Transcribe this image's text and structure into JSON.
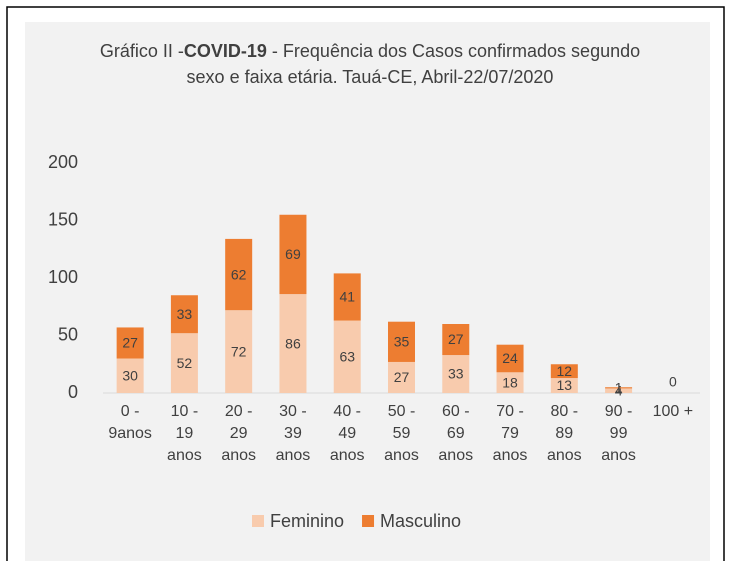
{
  "chart_data": {
    "type": "stacked_bar",
    "title_parts": [
      "Gráfico II -",
      "COVID-19",
      " - Frequência dos Casos confirmados segundo sexo e faixa etária. Tauá-CE, Abril-22/07/2020"
    ],
    "categories": [
      "0 - 9anos",
      "10 - 19 anos",
      "20 - 29 anos",
      "30 - 39 anos",
      "40 - 49 anos",
      "50 - 59 anos",
      "60 - 69 anos",
      "70 - 79 anos",
      "80 - 89 anos",
      "90 - 99 anos",
      "100 +"
    ],
    "series": [
      {
        "name": "Feminino",
        "color": "#f8cbad",
        "values": [
          30,
          52,
          72,
          86,
          63,
          27,
          33,
          18,
          13,
          4,
          null
        ]
      },
      {
        "name": "Masculino",
        "color": "#ed7d31",
        "values": [
          27,
          33,
          62,
          69,
          41,
          35,
          27,
          24,
          12,
          1,
          0
        ]
      }
    ],
    "ylim": [
      0,
      200
    ],
    "yticks": [
      0,
      50,
      100,
      150,
      200
    ],
    "grid": false,
    "legend": "bottom"
  }
}
